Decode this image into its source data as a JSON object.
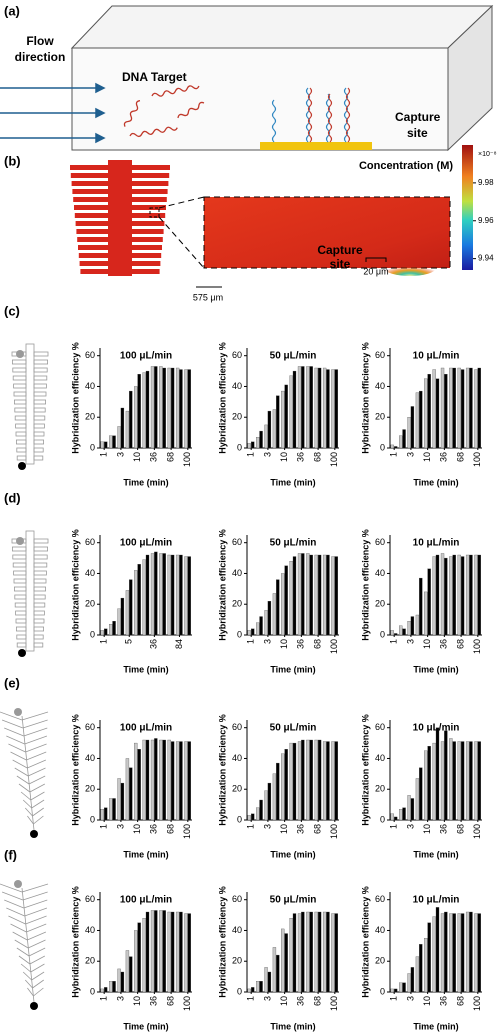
{
  "panel_a": {
    "label": "(a)",
    "flow_lines": [
      "Flow",
      "direction"
    ],
    "target": "DNA Target",
    "capture_lines": [
      "Capture",
      "site"
    ]
  },
  "panel_b": {
    "label": "(b)",
    "colorbar_title": "Concentration (M)",
    "colorbar_exponent": "×10⁻⁸",
    "colorbar_lim": [
      9.934,
      10.0
    ],
    "colorbar_ticks": [
      9.94,
      9.96,
      9.98
    ],
    "capture_lines": [
      "Capture",
      "site"
    ],
    "zoom_scale": "20 μm",
    "channel_scale": "575 μm"
  },
  "row_labels": [
    "(c)",
    "(d)",
    "(e)",
    "(f)"
  ],
  "chart_data": [
    {
      "type": "bar",
      "title": "100 μL/min",
      "x_label": "Time (min)",
      "y_label": "Hybridization efficiency %",
      "categories": [
        "1",
        null,
        "3",
        null,
        "10",
        null,
        "36",
        null,
        "68",
        null,
        "100"
      ],
      "series": [
        {
          "color": "#c8c8c8",
          "values": [
            4,
            8,
            14,
            24,
            40,
            49,
            53,
            53,
            52,
            52,
            51
          ]
        },
        {
          "color": "#000000",
          "values": [
            4,
            8,
            26,
            37,
            48,
            50,
            53,
            52,
            52,
            51,
            51
          ]
        }
      ],
      "ylim": [
        0,
        65
      ],
      "yticks": [
        0,
        20,
        40,
        60
      ]
    },
    {
      "type": "bar",
      "title": "50 μL/min",
      "x_label": "Time (min)",
      "y_label": "Hybridization efficiency %",
      "categories": [
        "1",
        null,
        "3",
        null,
        "10",
        null,
        "36",
        null,
        "68",
        null,
        "100"
      ],
      "series": [
        {
          "color": "#c8c8c8",
          "values": [
            3,
            7,
            15,
            25,
            37,
            47,
            53,
            53,
            52,
            52,
            51
          ]
        },
        {
          "color": "#000000",
          "values": [
            4,
            11,
            24,
            34,
            41,
            50,
            53,
            53,
            52,
            51,
            51
          ]
        }
      ],
      "ylim": [
        0,
        65
      ],
      "yticks": [
        0,
        20,
        40,
        60
      ]
    },
    {
      "type": "bar",
      "title": "10 μL/min",
      "x_label": "Time (min)",
      "y_label": "Hybridization efficiency %",
      "categories": [
        "1",
        null,
        "3",
        null,
        "10",
        null,
        "36",
        null,
        "68",
        null,
        "100"
      ],
      "series": [
        {
          "color": "#c8c8c8",
          "values": [
            2,
            8,
            20,
            36,
            45,
            51,
            52,
            52,
            52,
            52,
            51
          ]
        },
        {
          "color": "#000000",
          "values": [
            1,
            12,
            27,
            37,
            48,
            45,
            48,
            52,
            51,
            52,
            52
          ]
        }
      ],
      "ylim": [
        0,
        65
      ],
      "yticks": [
        0,
        20,
        40,
        60
      ]
    },
    {
      "type": "bar",
      "title": "100 μL/min",
      "x_label": "Time (min)",
      "y_label": "Hybridization efficiency %",
      "categories": [
        "1",
        null,
        null,
        "5",
        null,
        null,
        "36",
        null,
        null,
        "84",
        null
      ],
      "series": [
        {
          "color": "#c8c8c8",
          "values": [
            3,
            7,
            17,
            29,
            42,
            49,
            53,
            53,
            52,
            52,
            51
          ]
        },
        {
          "color": "#000000",
          "values": [
            4,
            9,
            24,
            36,
            46,
            52,
            54,
            53,
            52,
            52,
            51
          ]
        }
      ],
      "ylim": [
        0,
        65
      ],
      "yticks": [
        0,
        20,
        40,
        60
      ]
    },
    {
      "type": "bar",
      "title": "50 μL/min",
      "x_label": "Time (min)",
      "y_label": "Hybridization efficiency %",
      "categories": [
        "1",
        null,
        "3",
        null,
        "10",
        null,
        "36",
        null,
        "68",
        null,
        "100"
      ],
      "series": [
        {
          "color": "#c8c8c8",
          "values": [
            3,
            8,
            16,
            27,
            40,
            48,
            53,
            53,
            52,
            52,
            51
          ]
        },
        {
          "color": "#000000",
          "values": [
            4,
            12,
            22,
            36,
            45,
            51,
            53,
            52,
            52,
            52,
            51
          ]
        }
      ],
      "ylim": [
        0,
        65
      ],
      "yticks": [
        0,
        20,
        40,
        60
      ]
    },
    {
      "type": "bar",
      "title": "10 μL/min",
      "x_label": "Time (min)",
      "y_label": "Hybridization efficiency %",
      "categories": [
        "1",
        null,
        "3",
        null,
        "10",
        null,
        "36",
        null,
        "68",
        null,
        "100"
      ],
      "series": [
        {
          "color": "#c8c8c8",
          "values": [
            3,
            6,
            9,
            13,
            28,
            51,
            53,
            51,
            52,
            52,
            52
          ]
        },
        {
          "color": "#000000",
          "values": [
            1,
            4,
            12,
            37,
            43,
            52,
            50,
            52,
            51,
            52,
            52
          ]
        }
      ],
      "ylim": [
        0,
        65
      ],
      "yticks": [
        0,
        20,
        40,
        60
      ]
    },
    {
      "type": "bar",
      "title": "100 μL/min",
      "x_label": "Time (min)",
      "y_label": "Hybridization efficiency %",
      "categories": [
        "1",
        null,
        "3",
        null,
        "10",
        null,
        "36",
        null,
        "68",
        null,
        "100"
      ],
      "series": [
        {
          "color": "#c8c8c8",
          "values": [
            7,
            14,
            27,
            40,
            50,
            52,
            52,
            52,
            52,
            51,
            51
          ]
        },
        {
          "color": "#000000",
          "values": [
            8,
            14,
            24,
            34,
            46,
            52,
            53,
            52,
            51,
            51,
            51
          ]
        }
      ],
      "ylim": [
        0,
        65
      ],
      "yticks": [
        0,
        20,
        40,
        60
      ]
    },
    {
      "type": "bar",
      "title": "50 μL/min",
      "x_label": "Time (min)",
      "y_label": "Hybridization efficiency %",
      "categories": [
        "1",
        null,
        "3",
        null,
        "10",
        null,
        "36",
        null,
        "68",
        null,
        "100"
      ],
      "series": [
        {
          "color": "#c8c8c8",
          "values": [
            3,
            8,
            19,
            30,
            43,
            50,
            51,
            52,
            52,
            51,
            51
          ]
        },
        {
          "color": "#000000",
          "values": [
            4,
            13,
            24,
            37,
            46,
            50,
            52,
            52,
            52,
            51,
            51
          ]
        }
      ],
      "ylim": [
        0,
        65
      ],
      "yticks": [
        0,
        20,
        40,
        60
      ]
    },
    {
      "type": "bar",
      "title": "10 μL/min",
      "x_label": "Time (min)",
      "y_label": "Hybridization efficiency %",
      "categories": [
        "1",
        null,
        "3",
        null,
        "10",
        null,
        "36",
        null,
        "68",
        null,
        "100"
      ],
      "series": [
        {
          "color": "#c8c8c8",
          "values": [
            4,
            7,
            16,
            27,
            45,
            50,
            51,
            53,
            51,
            51,
            51
          ]
        },
        {
          "color": "#000000",
          "values": [
            2,
            8,
            14,
            34,
            48,
            60,
            58,
            51,
            51,
            51,
            51
          ]
        }
      ],
      "ylim": [
        0,
        65
      ],
      "yticks": [
        0,
        20,
        40,
        60
      ]
    },
    {
      "type": "bar",
      "title": "100 μL/min",
      "x_label": "Time (min)",
      "y_label": "Hybridization efficiency %",
      "categories": [
        "1",
        null,
        "3",
        null,
        "10",
        null,
        "36",
        null,
        "68",
        null,
        "100"
      ],
      "series": [
        {
          "color": "#c8c8c8",
          "values": [
            2,
            7,
            15,
            27,
            40,
            48,
            53,
            53,
            52,
            52,
            51
          ]
        },
        {
          "color": "#000000",
          "values": [
            3,
            7,
            13,
            23,
            45,
            52,
            53,
            53,
            52,
            52,
            51
          ]
        }
      ],
      "ylim": [
        0,
        65
      ],
      "yticks": [
        0,
        20,
        40,
        60
      ]
    },
    {
      "type": "bar",
      "title": "50 μL/min",
      "x_label": "Time (min)",
      "y_label": "Hybridization efficiency %",
      "categories": [
        "1",
        null,
        "3",
        null,
        "10",
        null,
        "36",
        null,
        "68",
        null,
        "100"
      ],
      "series": [
        {
          "color": "#c8c8c8",
          "values": [
            2,
            7,
            16,
            29,
            41,
            48,
            51,
            52,
            52,
            52,
            51
          ]
        },
        {
          "color": "#000000",
          "values": [
            3,
            7,
            13,
            24,
            38,
            51,
            52,
            52,
            52,
            52,
            51
          ]
        }
      ],
      "ylim": [
        0,
        65
      ],
      "yticks": [
        0,
        20,
        40,
        60
      ]
    },
    {
      "type": "bar",
      "title": "10 μL/min",
      "x_label": "Time (min)",
      "y_label": "Hybridization efficiency %",
      "categories": [
        "1",
        null,
        "3",
        null,
        "10",
        null,
        "36",
        null,
        "68",
        null,
        "100"
      ],
      "series": [
        {
          "color": "#c8c8c8",
          "values": [
            2,
            6,
            12,
            23,
            35,
            49,
            51,
            51,
            51,
            52,
            51
          ]
        },
        {
          "color": "#000000",
          "values": [
            2,
            6,
            16,
            31,
            45,
            55,
            52,
            51,
            51,
            52,
            51
          ]
        }
      ],
      "ylim": [
        0,
        65
      ],
      "yticks": [
        0,
        20,
        40,
        60
      ]
    }
  ]
}
